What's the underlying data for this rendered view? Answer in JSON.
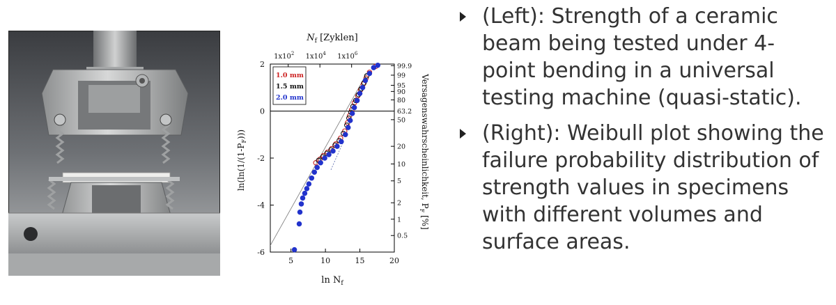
{
  "bullets": [
    {
      "text": "(Left): Strength of a ceramic beam being tested under 4-point bending in a universal testing machine (quasi-static)."
    },
    {
      "text": "(Right): Weibull plot showing the failure probability distribution of strength values in specimens with different volumes and surface areas."
    }
  ],
  "chart_data": {
    "type": "scatter",
    "xlabel": "ln N",
    "xlabel_sub": "f",
    "ylabel": "ln(ln(1/(1-P",
    "ylabel_sub": "F",
    "ylabel_end": ")))",
    "top_label": "N",
    "top_label_sub": "f",
    "top_label_unit": " [Zyklen]",
    "right_label": "Versagenswahrscheinlichkeit, P",
    "right_label_sub": "F",
    "right_label_unit": " [%]",
    "xlim": [
      2,
      20
    ],
    "ylim": [
      -6,
      2
    ],
    "x_ticks": [
      "5",
      "10",
      "15",
      "20"
    ],
    "y_ticks": [
      "2",
      "0",
      "-2",
      "-4",
      "-6"
    ],
    "top_ticks": [
      {
        "label": "1x10",
        "exp": "2",
        "lnx": 4.6
      },
      {
        "label": "1x10",
        "exp": "4",
        "lnx": 9.2
      },
      {
        "label": "1x10",
        "exp": "6",
        "lnx": 13.8
      }
    ],
    "right_ticks": [
      "99.9",
      "99",
      "95",
      "90",
      "80",
      "63.2",
      "50",
      "20",
      "10",
      "5",
      "2",
      "1",
      "0.5"
    ],
    "right_tick_values": [
      99.9,
      99,
      95,
      90,
      80,
      63.2,
      50,
      20,
      10,
      5,
      2,
      1,
      0.5
    ],
    "zero_line": true,
    "grid": false,
    "legend_position": "top-left",
    "series": [
      {
        "name": "1.0 mm",
        "color": "#cc2222",
        "marker": "open-circle",
        "points": [
          [
            8.6,
            -2.2
          ],
          [
            9.2,
            -2.05
          ],
          [
            9.7,
            -1.9
          ],
          [
            10.3,
            -1.75
          ],
          [
            10.9,
            -1.6
          ],
          [
            11.5,
            -1.4
          ],
          [
            12.2,
            -1.15
          ],
          [
            12.8,
            -0.85
          ],
          [
            13.2,
            -0.5
          ],
          [
            13.5,
            -0.2
          ],
          [
            13.8,
            0.05
          ],
          [
            14.2,
            0.35
          ],
          [
            14.7,
            0.65
          ],
          [
            15.1,
            0.9
          ],
          [
            15.5,
            1.15
          ],
          [
            15.9,
            1.4
          ],
          [
            16.4,
            1.65
          ],
          [
            17.3,
            1.9
          ]
        ]
      },
      {
        "name": "1.5 mm",
        "color": "#111111",
        "marker": "open-circle",
        "points": [
          [
            9.0,
            -2.1
          ],
          [
            9.6,
            -1.95
          ],
          [
            10.2,
            -1.8
          ],
          [
            10.8,
            -1.65
          ],
          [
            11.4,
            -1.45
          ],
          [
            12.0,
            -1.25
          ],
          [
            12.6,
            -0.95
          ],
          [
            13.1,
            -0.6
          ],
          [
            13.4,
            -0.3
          ],
          [
            13.7,
            -0.05
          ],
          [
            14.0,
            0.2
          ],
          [
            14.4,
            0.45
          ],
          [
            14.8,
            0.7
          ],
          [
            15.2,
            0.95
          ],
          [
            15.6,
            1.2
          ],
          [
            16.0,
            1.5
          ]
        ]
      },
      {
        "name": "2.0 mm",
        "color": "#2233cc",
        "marker": "filled-circle",
        "points": [
          [
            5.5,
            -5.9
          ],
          [
            6.2,
            -4.8
          ],
          [
            6.3,
            -4.3
          ],
          [
            6.5,
            -3.95
          ],
          [
            6.7,
            -3.7
          ],
          [
            7.0,
            -3.5
          ],
          [
            7.3,
            -3.3
          ],
          [
            7.6,
            -3.1
          ],
          [
            8.0,
            -2.85
          ],
          [
            8.4,
            -2.6
          ],
          [
            8.8,
            -2.4
          ],
          [
            9.3,
            -2.2
          ],
          [
            9.9,
            -2.0
          ],
          [
            10.5,
            -1.85
          ],
          [
            11.1,
            -1.7
          ],
          [
            11.7,
            -1.5
          ],
          [
            12.3,
            -1.3
          ],
          [
            12.9,
            -1.0
          ],
          [
            13.3,
            -0.7
          ],
          [
            13.6,
            -0.4
          ],
          [
            13.9,
            -0.1
          ],
          [
            14.2,
            0.15
          ],
          [
            14.6,
            0.45
          ],
          [
            15.0,
            0.75
          ],
          [
            15.4,
            1.0
          ],
          [
            15.8,
            1.3
          ],
          [
            16.4,
            1.6
          ],
          [
            17.0,
            1.85
          ],
          [
            17.6,
            1.95
          ]
        ]
      }
    ],
    "fit_line": [
      [
        2,
        -6
      ],
      [
        16,
        1.6
      ]
    ],
    "dashed_line": [
      [
        10.8,
        -2.5
      ],
      [
        12.6,
        -1.3
      ]
    ]
  }
}
